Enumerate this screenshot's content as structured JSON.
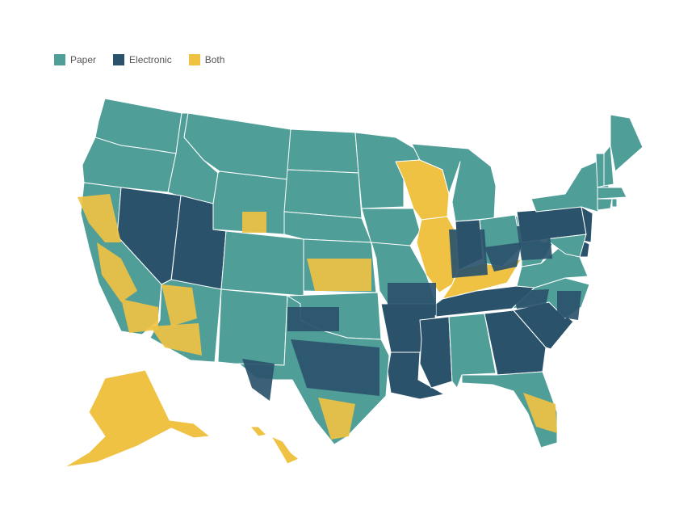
{
  "colors": {
    "paper": "#4f9e98",
    "electronic": "#2a526b",
    "both": "#efc244",
    "border": "#ffffff"
  },
  "legend": [
    {
      "key": "paper",
      "label": "Paper",
      "color": "#4f9e98"
    },
    {
      "key": "electronic",
      "label": "Electronic",
      "color": "#2a526b"
    },
    {
      "key": "both",
      "label": "Both",
      "color": "#efc244"
    }
  ],
  "states": [
    {
      "abbr": "WA",
      "category": "paper"
    },
    {
      "abbr": "OR",
      "category": "paper"
    },
    {
      "abbr": "ID",
      "category": "paper"
    },
    {
      "abbr": "MT",
      "category": "paper"
    },
    {
      "abbr": "WY",
      "category": "paper"
    },
    {
      "abbr": "CA",
      "category": "paper"
    },
    {
      "abbr": "NV",
      "category": "electronic"
    },
    {
      "abbr": "UT",
      "category": "electronic"
    },
    {
      "abbr": "AZ",
      "category": "paper"
    },
    {
      "abbr": "CO",
      "category": "paper"
    },
    {
      "abbr": "NM",
      "category": "paper"
    },
    {
      "abbr": "ND",
      "category": "paper"
    },
    {
      "abbr": "SD",
      "category": "paper"
    },
    {
      "abbr": "NE",
      "category": "paper"
    },
    {
      "abbr": "KS",
      "category": "paper"
    },
    {
      "abbr": "OK",
      "category": "paper"
    },
    {
      "abbr": "TX",
      "category": "paper"
    },
    {
      "abbr": "MN",
      "category": "paper"
    },
    {
      "abbr": "IA",
      "category": "paper"
    },
    {
      "abbr": "MO",
      "category": "paper"
    },
    {
      "abbr": "AR",
      "category": "electronic"
    },
    {
      "abbr": "LA",
      "category": "electronic"
    },
    {
      "abbr": "WI",
      "category": "both"
    },
    {
      "abbr": "IL",
      "category": "both"
    },
    {
      "abbr": "MI",
      "category": "paper"
    },
    {
      "abbr": "IN",
      "category": "electronic"
    },
    {
      "abbr": "OH",
      "category": "paper"
    },
    {
      "abbr": "KY",
      "category": "both"
    },
    {
      "abbr": "TN",
      "category": "electronic"
    },
    {
      "abbr": "MS",
      "category": "electronic"
    },
    {
      "abbr": "AL",
      "category": "paper"
    },
    {
      "abbr": "GA",
      "category": "electronic"
    },
    {
      "abbr": "FL",
      "category": "paper"
    },
    {
      "abbr": "SC",
      "category": "electronic"
    },
    {
      "abbr": "NC",
      "category": "paper"
    },
    {
      "abbr": "VA",
      "category": "paper"
    },
    {
      "abbr": "WV",
      "category": "paper"
    },
    {
      "abbr": "PA",
      "category": "electronic"
    },
    {
      "abbr": "NY",
      "category": "paper"
    },
    {
      "abbr": "NJ",
      "category": "electronic"
    },
    {
      "abbr": "DE",
      "category": "electronic"
    },
    {
      "abbr": "MD",
      "category": "paper"
    },
    {
      "abbr": "VT",
      "category": "paper"
    },
    {
      "abbr": "NH",
      "category": "paper"
    },
    {
      "abbr": "ME",
      "category": "paper"
    },
    {
      "abbr": "MA",
      "category": "paper"
    },
    {
      "abbr": "CT",
      "category": "paper"
    },
    {
      "abbr": "RI",
      "category": "paper"
    },
    {
      "abbr": "AK",
      "category": "both"
    },
    {
      "abbr": "HI",
      "category": "both"
    }
  ],
  "county_patches": [
    {
      "region": "northern-california",
      "category": "both"
    },
    {
      "region": "central-california",
      "category": "both"
    },
    {
      "region": "southeast-california",
      "category": "both"
    },
    {
      "region": "western-arizona",
      "category": "both"
    },
    {
      "region": "southern-arizona",
      "category": "both"
    },
    {
      "region": "eastern-wyoming",
      "category": "both"
    },
    {
      "region": "central-kansas",
      "category": "both"
    },
    {
      "region": "north-texas",
      "category": "electronic"
    },
    {
      "region": "central-texas",
      "category": "electronic"
    },
    {
      "region": "west-texas",
      "category": "electronic"
    },
    {
      "region": "south-texas",
      "category": "both"
    },
    {
      "region": "southeast-missouri",
      "category": "electronic"
    },
    {
      "region": "illinois-east",
      "category": "electronic"
    },
    {
      "region": "ohio-southeast",
      "category": "electronic"
    },
    {
      "region": "west-virginia",
      "category": "electronic"
    },
    {
      "region": "north-carolina-east",
      "category": "electronic"
    },
    {
      "region": "north-carolina-west",
      "category": "electronic"
    },
    {
      "region": "florida-east",
      "category": "both"
    }
  ]
}
